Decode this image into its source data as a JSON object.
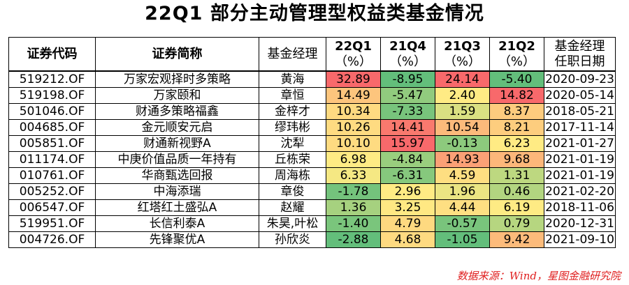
{
  "title": "22Q1 部分主动管理型权益类基金情况",
  "headers": {
    "code": "证券代码",
    "name": "证券简称",
    "manager": "基金经理",
    "q1_top": "22Q1",
    "q1_bottom": "（%）",
    "q2_top": "21Q4",
    "q2_bottom": "（%）",
    "q3_top": "21Q3",
    "q3_bottom": "（%）",
    "q4_top": "21Q2",
    "q4_bottom": "（%）",
    "date_top": "基金经理",
    "date_bottom": "任职日期"
  },
  "rows": [
    {
      "code": "519212.OF",
      "name": "万家宏观择时多策略",
      "manager": "黄海",
      "v": [
        "32.89",
        "-8.95",
        "24.14",
        "-5.40"
      ],
      "date": "2020-09-23"
    },
    {
      "code": "519198.OF",
      "name": "万家颐和",
      "manager": "章恒",
      "v": [
        "14.49",
        "-5.47",
        "2.40",
        "14.82"
      ],
      "date": "2020-05-14"
    },
    {
      "code": "501046.OF",
      "name": "财通多策略福鑫",
      "manager": "金梓才",
      "v": [
        "10.34",
        "-7.33",
        "1.59",
        "8.37"
      ],
      "date": "2018-05-21"
    },
    {
      "code": "004685.OF",
      "name": "金元顺安元启",
      "manager": "缪玮彬",
      "v": [
        "10.26",
        "14.41",
        "10.54",
        "8.21"
      ],
      "date": "2017-11-14"
    },
    {
      "code": "005851.OF",
      "name": "财通新视野A",
      "manager": "沈犁",
      "v": [
        "10.10",
        "15.97",
        "-0.13",
        "6.23"
      ],
      "date": "2021-01-27"
    },
    {
      "code": "011174.OF",
      "name": "中庚价值品质一年持有",
      "manager": "丘栋荣",
      "v": [
        "6.98",
        "-4.84",
        "14.93",
        "9.68"
      ],
      "date": "2021-01-19"
    },
    {
      "code": "010761.OF",
      "name": "华商甄选回报",
      "manager": "周海栋",
      "v": [
        "6.33",
        "-6.31",
        "4.59",
        "1.31"
      ],
      "date": "2021-01-19"
    },
    {
      "code": "005252.OF",
      "name": "中海添瑞",
      "manager": "章俊",
      "v": [
        "-1.78",
        "2.96",
        "1.96",
        "0.46"
      ],
      "date": "2021-02-20"
    },
    {
      "code": "006547.OF",
      "name": "红塔红土盛弘A",
      "manager": "赵耀",
      "v": [
        "1.36",
        "3.25",
        "4.44",
        "6.19"
      ],
      "date": "2018-11-06"
    },
    {
      "code": "519951.OF",
      "name": "长信利泰A",
      "manager": "朱昊,叶松",
      "v": [
        "-1.40",
        "4.79",
        "-0.57",
        "0.79"
      ],
      "date": "2020-12-31"
    },
    {
      "code": "004726.OF",
      "name": "先锋聚优A",
      "manager": "孙欣炎",
      "v": [
        "-2.88",
        "4.68",
        "-1.05",
        "9.42"
      ],
      "date": "2021-09-10"
    }
  ],
  "colors": {
    "low": "#63be7b",
    "mid": "#ffeb84",
    "high": "#f8696b",
    "source_text": "#e02020"
  },
  "source": "数据来源：Wind，星图金融研究院"
}
